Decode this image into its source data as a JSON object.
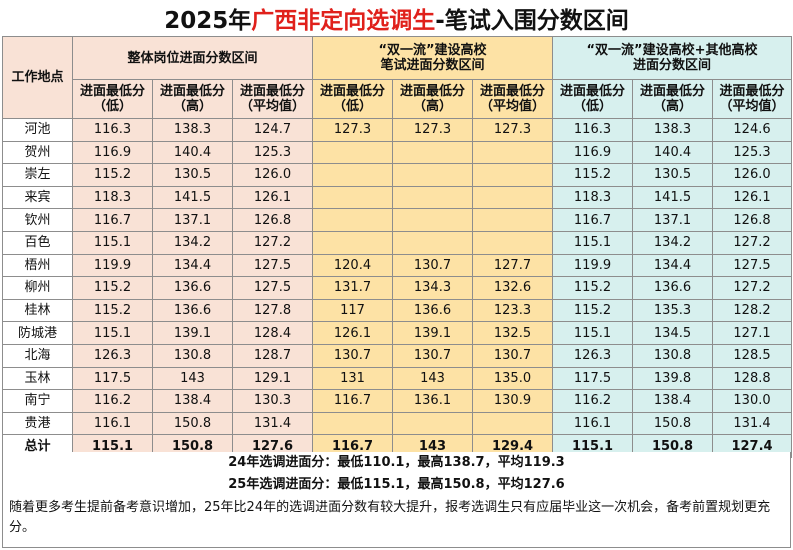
{
  "title": {
    "prefix": "2025年",
    "highlight": "广西非定向选调生",
    "suffix": "-笔试入围分数区间"
  },
  "header": {
    "city_label": "工作地点",
    "group_a": "整体岗位进面分数区间",
    "group_b_line1": "“双一流”建设高校",
    "group_b_line2": "笔试进面分数区间",
    "group_c_line1": "“双一流”建设高校+其他高校",
    "group_c_line2": "进面分数区间",
    "col_line1": "进面最低分",
    "col_low": "（低）",
    "col_high": "（高）",
    "col_avg": "（平均值）"
  },
  "rows": [
    {
      "city": "河池",
      "a": [
        "116.3",
        "138.3",
        "124.7"
      ],
      "b": [
        "127.3",
        "127.3",
        "127.3"
      ],
      "c": [
        "116.3",
        "138.3",
        "124.6"
      ]
    },
    {
      "city": "贺州",
      "a": [
        "116.9",
        "140.4",
        "125.3"
      ],
      "b": [
        "",
        "",
        ""
      ],
      "c": [
        "116.9",
        "140.4",
        "125.3"
      ]
    },
    {
      "city": "崇左",
      "a": [
        "115.2",
        "130.5",
        "126.0"
      ],
      "b": [
        "",
        "",
        ""
      ],
      "c": [
        "115.2",
        "130.5",
        "126.0"
      ]
    },
    {
      "city": "来宾",
      "a": [
        "118.3",
        "141.5",
        "126.1"
      ],
      "b": [
        "",
        "",
        ""
      ],
      "c": [
        "118.3",
        "141.5",
        "126.1"
      ]
    },
    {
      "city": "钦州",
      "a": [
        "116.7",
        "137.1",
        "126.8"
      ],
      "b": [
        "",
        "",
        ""
      ],
      "c": [
        "116.7",
        "137.1",
        "126.8"
      ]
    },
    {
      "city": "百色",
      "a": [
        "115.1",
        "134.2",
        "127.2"
      ],
      "b": [
        "",
        "",
        ""
      ],
      "c": [
        "115.1",
        "134.2",
        "127.2"
      ]
    },
    {
      "city": "梧州",
      "a": [
        "119.9",
        "134.4",
        "127.5"
      ],
      "b": [
        "120.4",
        "130.7",
        "127.7"
      ],
      "c": [
        "119.9",
        "134.4",
        "127.5"
      ]
    },
    {
      "city": "柳州",
      "a": [
        "115.2",
        "136.6",
        "127.5"
      ],
      "b": [
        "131.7",
        "134.3",
        "132.6"
      ],
      "c": [
        "115.2",
        "136.6",
        "127.2"
      ]
    },
    {
      "city": "桂林",
      "a": [
        "115.2",
        "136.6",
        "127.8"
      ],
      "b": [
        "117",
        "136.6",
        "123.3"
      ],
      "c": [
        "115.2",
        "135.3",
        "128.2"
      ]
    },
    {
      "city": "防城港",
      "a": [
        "115.1",
        "139.1",
        "128.4"
      ],
      "b": [
        "126.1",
        "139.1",
        "132.5"
      ],
      "c": [
        "115.1",
        "134.5",
        "127.1"
      ]
    },
    {
      "city": "北海",
      "a": [
        "126.3",
        "130.8",
        "128.7"
      ],
      "b": [
        "130.7",
        "130.7",
        "130.7"
      ],
      "c": [
        "126.3",
        "130.8",
        "128.5"
      ]
    },
    {
      "city": "玉林",
      "a": [
        "117.5",
        "143",
        "129.1"
      ],
      "b": [
        "131",
        "143",
        "135.0"
      ],
      "c": [
        "117.5",
        "139.8",
        "128.8"
      ]
    },
    {
      "city": "南宁",
      "a": [
        "116.2",
        "138.4",
        "130.3"
      ],
      "b": [
        "116.7",
        "136.1",
        "130.9"
      ],
      "c": [
        "116.2",
        "138.4",
        "130.0"
      ]
    },
    {
      "city": "贵港",
      "a": [
        "116.1",
        "150.8",
        "131.4"
      ],
      "b": [
        "",
        "",
        ""
      ],
      "c": [
        "116.1",
        "150.8",
        "131.4"
      ]
    }
  ],
  "total": {
    "city": "总计",
    "a": [
      "115.1",
      "150.8",
      "127.6"
    ],
    "b": [
      "116.7",
      "143",
      "129.4"
    ],
    "c": [
      "115.1",
      "150.8",
      "127.4"
    ]
  },
  "footer": {
    "line1": "24年选调进面分：最低110.1，最高138.7，平均119.3",
    "line2": "25年选调进面分：最低115.1，最高150.8，平均127.6",
    "note": "随着更多考生提前备考意识增加，25年比24年的选调进面分数有较大提升，报考选调生只有应届毕业这一次机会，备考前置规划更充分。"
  },
  "colors": {
    "title_highlight": "#e0201b",
    "group_a_bg": "#f9e2d6",
    "group_b_bg": "#fde2a5",
    "group_c_bg": "#d7f0ee",
    "border": "#8d8d8d"
  }
}
